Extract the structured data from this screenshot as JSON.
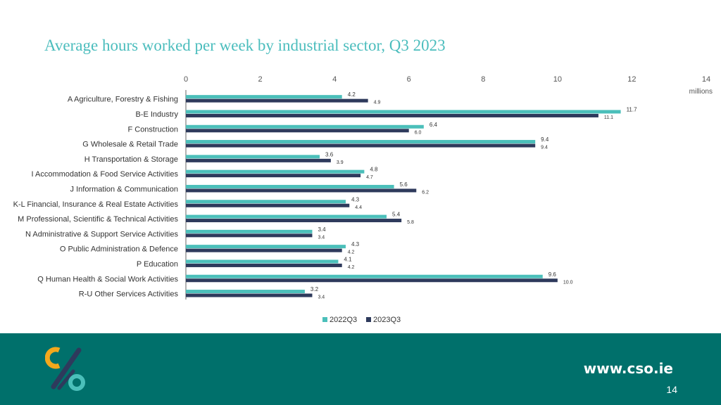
{
  "title": "Average hours worked per week by industrial sector, Q3 2023",
  "footer": {
    "url": "www.cso.ie",
    "page_number": "14"
  },
  "colors": {
    "series_2022": "#4bbfba",
    "series_2023": "#2e3a5c",
    "footer_bg": "#00706b",
    "title": "#4bbdbd"
  },
  "chart_data": {
    "type": "bar",
    "orientation": "horizontal",
    "categories": [
      "A Agriculture, Forestry & Fishing",
      "B-E Industry",
      "F Construction",
      "G Wholesale & Retail Trade",
      "H Transportation & Storage",
      "I Accommodation & Food Service Activities",
      "J Information & Communication",
      "K-L Financial, Insurance & Real Estate Activities",
      "M Professional, Scientific & Technical Activities",
      "N Administrative & Support Service Activities",
      "O Public Administration & Defence",
      "P Education",
      "Q Human Health & Social Work Activities",
      "R-U Other Services Activities"
    ],
    "series": [
      {
        "name": "2022Q3",
        "values": [
          4.2,
          11.7,
          6.4,
          9.4,
          3.6,
          4.8,
          5.6,
          4.3,
          5.4,
          3.4,
          4.3,
          4.1,
          9.6,
          3.2
        ]
      },
      {
        "name": "2023Q3",
        "values": [
          4.9,
          11.1,
          6.0,
          9.4,
          3.9,
          4.7,
          6.2,
          4.4,
          5.8,
          3.4,
          4.2,
          4.2,
          10.0,
          3.4
        ]
      }
    ],
    "data_labels": [
      [
        "4.2",
        "11.7",
        "6.4",
        "9.4",
        "3.6",
        "4.8",
        "5.6",
        "4.3",
        "5.4",
        "3.4",
        "4.3",
        "4.1",
        "9.6",
        "3.2"
      ],
      [
        "4.9",
        "11.1",
        "6.0",
        "9.4",
        "3.9",
        "4.7",
        "6.2",
        "4.4",
        "5.8",
        "3.4",
        "4.2",
        "4.2",
        "10.0",
        "3.4"
      ]
    ],
    "xlim": [
      0,
      14
    ],
    "x_ticks": [
      "0",
      "2",
      "4",
      "6",
      "8",
      "10",
      "12",
      "14"
    ],
    "x_unit": "millions",
    "axis_position": "top",
    "legend_position": "bottom",
    "grid": false
  }
}
